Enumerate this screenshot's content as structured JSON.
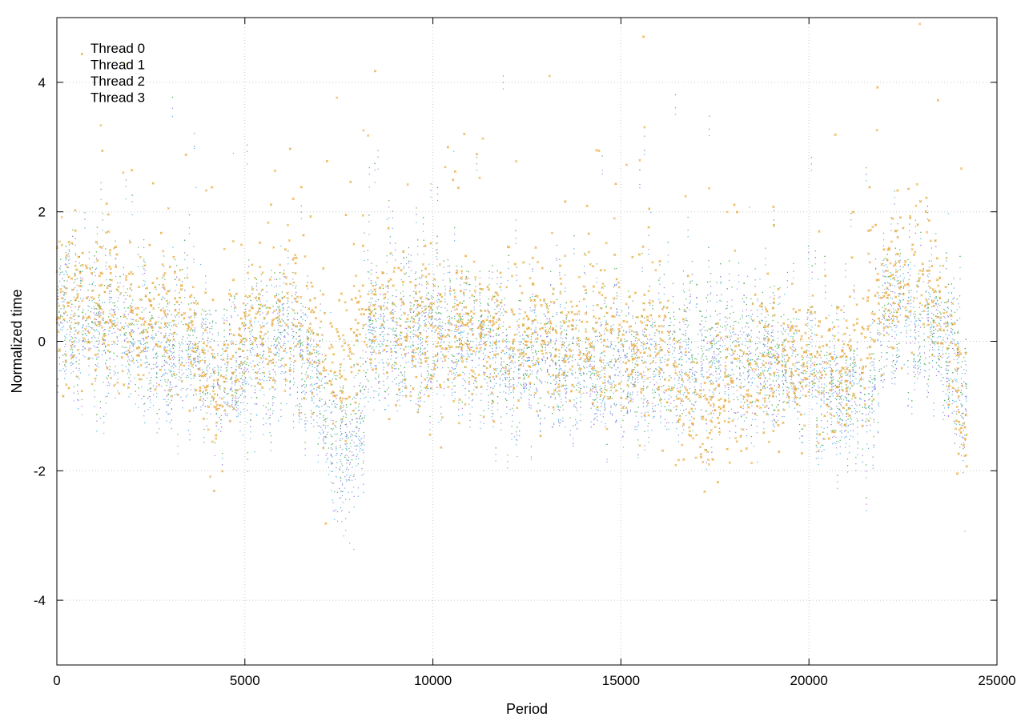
{
  "chart_data": {
    "type": "scatter",
    "title": "",
    "xlabel": "Period",
    "ylabel": "Normalized time",
    "xlim": [
      0,
      25000
    ],
    "ylim": [
      -5,
      5
    ],
    "x_ticks": [
      0,
      5000,
      10000,
      15000,
      20000,
      25000
    ],
    "y_ticks": [
      -4,
      -2,
      0,
      2,
      4
    ],
    "x_tick_labels": [
      "0",
      "5000",
      "10000",
      "15000",
      "20000",
      "25000"
    ],
    "y_tick_labels": [
      "-4",
      "-2",
      "0",
      "2",
      "4"
    ],
    "grid": true,
    "legend_position": "top-left",
    "x_max_data": 24200,
    "series": [
      {
        "name": "Thread 0",
        "color": "#9f7fd6",
        "marker": "dot",
        "trend": [
          [
            0,
            0.4
          ],
          [
            2000,
            0.0
          ],
          [
            3500,
            -0.2
          ],
          [
            4200,
            -0.6
          ],
          [
            5000,
            -0.3
          ],
          [
            6000,
            0.1
          ],
          [
            6800,
            -0.5
          ],
          [
            7200,
            -1.3
          ],
          [
            7800,
            -1.7
          ],
          [
            8100,
            -1.5
          ],
          [
            8300,
            0.1
          ],
          [
            10000,
            0.2
          ],
          [
            12000,
            -0.3
          ],
          [
            14000,
            -0.6
          ],
          [
            16000,
            -0.4
          ],
          [
            18000,
            -0.2
          ],
          [
            20000,
            -0.5
          ],
          [
            20800,
            -1.0
          ],
          [
            21600,
            -0.8
          ],
          [
            22000,
            0.3
          ],
          [
            23500,
            0.0
          ],
          [
            24200,
            -1.2
          ]
        ]
      },
      {
        "name": "Thread 1",
        "color": "#4caf50",
        "marker": "dot",
        "trend": [
          [
            0,
            0.5
          ],
          [
            2000,
            0.1
          ],
          [
            3500,
            0.0
          ],
          [
            4200,
            -0.4
          ],
          [
            5000,
            -0.2
          ],
          [
            6000,
            0.2
          ],
          [
            6800,
            -0.4
          ],
          [
            7200,
            -1.0
          ],
          [
            7800,
            -1.4
          ],
          [
            8100,
            -1.1
          ],
          [
            8300,
            0.2
          ],
          [
            10000,
            0.3
          ],
          [
            12000,
            -0.2
          ],
          [
            14000,
            -0.3
          ],
          [
            16000,
            -0.2
          ],
          [
            18000,
            0.0
          ],
          [
            20000,
            -0.4
          ],
          [
            20800,
            -0.9
          ],
          [
            21600,
            -0.7
          ],
          [
            22000,
            0.5
          ],
          [
            23500,
            0.2
          ],
          [
            24200,
            -0.8
          ]
        ]
      },
      {
        "name": "Thread 2",
        "color": "#59b4e6",
        "marker": "dot",
        "trend": [
          [
            0,
            0.3
          ],
          [
            2000,
            -0.2
          ],
          [
            3500,
            -0.3
          ],
          [
            4200,
            -0.4
          ],
          [
            5000,
            -0.5
          ],
          [
            6000,
            0.0
          ],
          [
            6800,
            -0.6
          ],
          [
            7200,
            -1.4
          ],
          [
            7800,
            -1.9
          ],
          [
            8100,
            -1.6
          ],
          [
            8300,
            -0.1
          ],
          [
            10000,
            0.1
          ],
          [
            12000,
            -0.4
          ],
          [
            14000,
            -0.5
          ],
          [
            16000,
            -0.5
          ],
          [
            18000,
            -0.3
          ],
          [
            20000,
            -0.6
          ],
          [
            20800,
            -1.1
          ],
          [
            21600,
            -0.9
          ],
          [
            22000,
            0.4
          ],
          [
            23500,
            0.1
          ],
          [
            24200,
            -1.0
          ]
        ]
      },
      {
        "name": "Thread 3",
        "color": "#e8a93a",
        "marker": "cross",
        "trend": [
          [
            0,
            0.6
          ],
          [
            2000,
            0.3
          ],
          [
            3500,
            0.2
          ],
          [
            4200,
            -0.9
          ],
          [
            5000,
            0.2
          ],
          [
            6000,
            0.3
          ],
          [
            6800,
            0.0
          ],
          [
            7200,
            -0.2
          ],
          [
            7800,
            -0.1
          ],
          [
            8100,
            0.4
          ],
          [
            8300,
            0.3
          ],
          [
            10000,
            0.0
          ],
          [
            12000,
            0.1
          ],
          [
            14000,
            0.0
          ],
          [
            16000,
            -0.1
          ],
          [
            17100,
            -1.4
          ],
          [
            18000,
            -0.6
          ],
          [
            20000,
            -0.3
          ],
          [
            20800,
            -0.7
          ],
          [
            21600,
            0.0
          ],
          [
            22000,
            0.8
          ],
          [
            23000,
            1.2
          ],
          [
            23500,
            0.4
          ],
          [
            24200,
            -1.3
          ]
        ]
      }
    ]
  }
}
